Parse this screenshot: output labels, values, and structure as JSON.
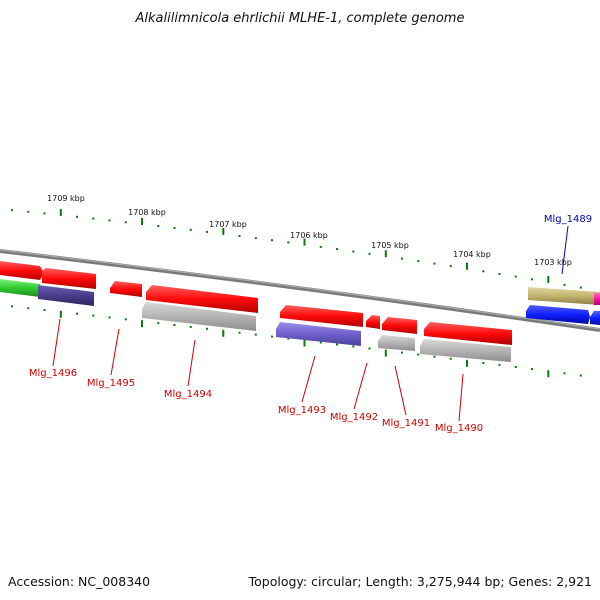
{
  "title": "Alkalilimnicola ehrlichii MLHE-1, complete genome",
  "footer": {
    "accession": "Accession: NC_008340",
    "topology": "Topology: circular; Length: 3,275,944 bp; Genes: 2,921"
  },
  "scale_labels": [
    "1709 kbp",
    "1708 kbp",
    "1707 kbp",
    "1706 kbp",
    "1705 kbp",
    "1704 kbp",
    "1703 kbp"
  ],
  "gene_labels": [
    {
      "name": "Mlg_1496",
      "color": "#d00000"
    },
    {
      "name": "Mlg_1495",
      "color": "#d00000"
    },
    {
      "name": "Mlg_1494",
      "color": "#d00000"
    },
    {
      "name": "Mlg_1493",
      "color": "#d00000"
    },
    {
      "name": "Mlg_1492",
      "color": "#d00000"
    },
    {
      "name": "Mlg_1491",
      "color": "#d00000"
    },
    {
      "name": "Mlg_1490",
      "color": "#d00000"
    },
    {
      "name": "Mlg_1489",
      "color": "#0000c0"
    }
  ],
  "colors": {
    "backbone": "#808080",
    "tick": "#0a7a0a",
    "gene_red": "#ff1010",
    "gene_grey": "#b8b8b8",
    "gene_purple": "#7060c8",
    "gene_dark_purple": "#4a3f8a",
    "gene_green": "#2ecc2e",
    "gene_olive": "#c8bc78",
    "gene_blue": "#1020ff",
    "gene_magenta": "#ff10a0"
  }
}
